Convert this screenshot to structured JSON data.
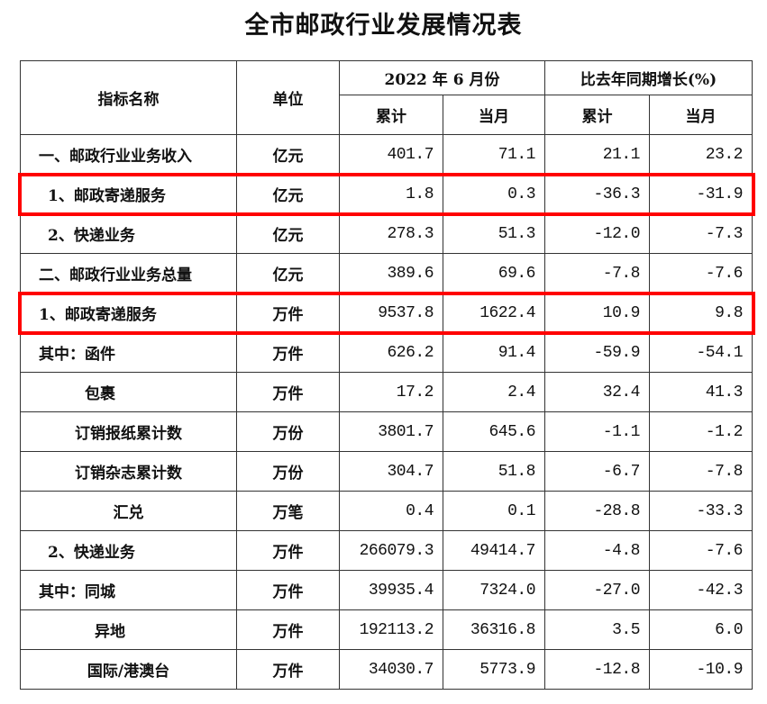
{
  "title": "全市邮政行业发展情况表",
  "header": {
    "name": "指标名称",
    "unit": "单位",
    "period": "2022 年 6 月份",
    "growth": "比去年同期增长(%)",
    "cumulative": "累计",
    "month": "当月",
    "cumulative2": "累计",
    "month2": "当月"
  },
  "highlight_color": "#ff0000",
  "highlighted_rows": [
    1,
    4
  ],
  "rows": [
    {
      "name": "一、邮政行业业务收入",
      "unit": "亿元",
      "cum": "401.7",
      "mon": "71.1",
      "gcum": "21.1",
      "gmon": "23.2"
    },
    {
      "name": "1、邮政寄递服务",
      "unit": "亿元",
      "cum": "1.8",
      "mon": "0.3",
      "gcum": "-36.3",
      "gmon": "-31.9"
    },
    {
      "name": "2、快递业务",
      "unit": "亿元",
      "cum": "278.3",
      "mon": "51.3",
      "gcum": "-12.0",
      "gmon": "-7.3"
    },
    {
      "name": "二、邮政行业业务总量",
      "unit": "亿元",
      "cum": "389.6",
      "mon": "69.6",
      "gcum": "-7.8",
      "gmon": "-7.6"
    },
    {
      "name": "1、邮政寄递服务",
      "unit": "万件",
      "cum": "9537.8",
      "mon": "1622.4",
      "gcum": "10.9",
      "gmon": "9.8"
    },
    {
      "name": "其中：函件",
      "unit": "万件",
      "cum": "626.2",
      "mon": "91.4",
      "gcum": "-59.9",
      "gmon": "-54.1"
    },
    {
      "name": "包裹",
      "unit": "万件",
      "cum": "17.2",
      "mon": "2.4",
      "gcum": "32.4",
      "gmon": "41.3"
    },
    {
      "name": "订销报纸累计数",
      "unit": "万份",
      "cum": "3801.7",
      "mon": "645.6",
      "gcum": "-1.1",
      "gmon": "-1.2"
    },
    {
      "name": "订销杂志累计数",
      "unit": "万份",
      "cum": "304.7",
      "mon": "51.8",
      "gcum": "-6.7",
      "gmon": "-7.8"
    },
    {
      "name": "汇兑",
      "unit": "万笔",
      "cum": "0.4",
      "mon": "0.1",
      "gcum": "-28.8",
      "gmon": "-33.3"
    },
    {
      "name": "2、快递业务",
      "unit": "万件",
      "cum": "266079.3",
      "mon": "49414.7",
      "gcum": "-4.8",
      "gmon": "-7.6"
    },
    {
      "name": "其中：同城",
      "unit": "万件",
      "cum": "39935.4",
      "mon": "7324.0",
      "gcum": "-27.0",
      "gmon": "-42.3"
    },
    {
      "name": "异地",
      "unit": "万件",
      "cum": "192113.2",
      "mon": "36316.8",
      "gcum": "3.5",
      "gmon": "6.0"
    },
    {
      "name": "国际/港澳台",
      "unit": "万件",
      "cum": "34030.7",
      "mon": "5773.9",
      "gcum": "-12.8",
      "gmon": "-10.9"
    }
  ]
}
